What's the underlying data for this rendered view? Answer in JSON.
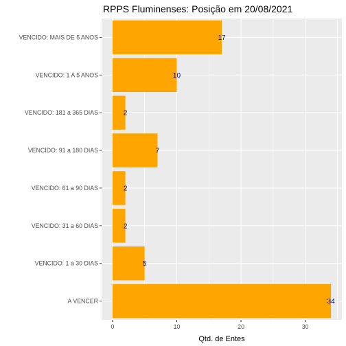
{
  "chart_data": {
    "type": "bar",
    "orientation": "horizontal",
    "title": "RPPS Fluminenses: Posição em 20/08/2021",
    "xlabel": "Qtd. de Entes",
    "ylabel": "",
    "categories": [
      "VENCIDO: MAIS DE 5 ANOS",
      "VENCIDO: 1 A 5 ANOS",
      "VENCIDO: 181 a 365 DIAS",
      "VENCIDO: 91 a 180 DIAS",
      "VENCIDO: 61 a 90 DIAS",
      "VENCIDO: 31 a 60 DIAS",
      "VENCIDO: 1 a 30 DIAS",
      "A VENCER"
    ],
    "values": [
      17,
      10,
      2,
      7,
      2,
      2,
      5,
      34
    ],
    "data_labels": [
      "17",
      "10",
      "2",
      "7",
      "2",
      "2",
      "5",
      "34"
    ],
    "xlim": [
      0,
      34
    ],
    "x_ticks": [
      0,
      10,
      20,
      30
    ],
    "x_tick_labels": [
      "0",
      "10",
      "20",
      "30"
    ],
    "grid": true,
    "colors": {
      "bar": "#FFA500",
      "panel_background": "#EBEBEB",
      "grid": "#FFFFFF",
      "data_label": "#00008B"
    }
  }
}
